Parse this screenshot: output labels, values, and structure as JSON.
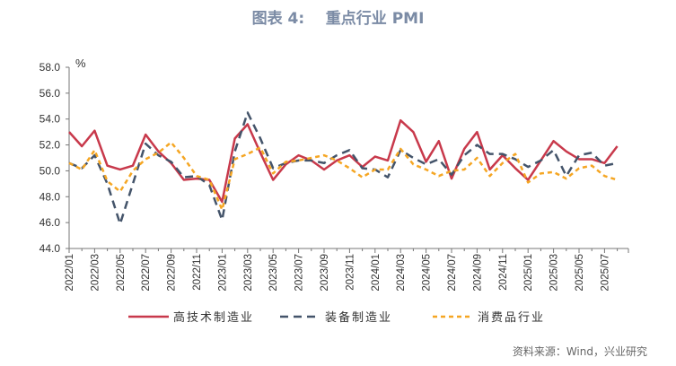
{
  "title": "图表 4:    重点行业 PMI",
  "source": "资料来源：Wind，兴业研究",
  "chart_data": {
    "type": "line",
    "title": "重点行业 PMI",
    "ylabel": "%",
    "ylim": [
      44,
      58
    ],
    "yticks": [
      "44.0",
      "46.0",
      "48.0",
      "50.0",
      "52.0",
      "54.0",
      "56.0",
      "58.0"
    ],
    "grid": false,
    "legend": "bottom",
    "x": [
      "2022/01",
      "2022/02",
      "2022/03",
      "2022/04",
      "2022/05",
      "2022/06",
      "2022/07",
      "2022/08",
      "2022/09",
      "2022/10",
      "2022/11",
      "2022/12",
      "2023/01",
      "2023/02",
      "2023/03",
      "2023/04",
      "2023/05",
      "2023/06",
      "2023/07",
      "2023/08",
      "2023/09",
      "2023/10",
      "2023/11",
      "2023/12",
      "2024/01",
      "2024/02",
      "2024/03",
      "2024/04",
      "2024/05",
      "2024/06",
      "2024/07",
      "2024/08",
      "2024/09",
      "2024/10",
      "2024/11",
      "2024/12",
      "2025/01",
      "2025/02",
      "2025/03",
      "2025/04",
      "2025/05",
      "2025/06",
      "2025/07",
      "2025/08"
    ],
    "xtick_labels": [
      "2022/01",
      "2022/03",
      "2022/05",
      "2022/07",
      "2022/09",
      "2022/11",
      "2023/01",
      "2023/03",
      "2023/05",
      "2023/07",
      "2023/09",
      "2023/11",
      "2024/01",
      "2024/03",
      "2024/05",
      "2024/07",
      "2024/09",
      "2024/11",
      "2025/01",
      "2025/03",
      "2025/05",
      "2025/07"
    ],
    "series": [
      {
        "name": "高技术制造业",
        "color": "#c8394b",
        "style": "solid",
        "values": [
          53.0,
          51.9,
          53.1,
          50.4,
          50.1,
          50.4,
          52.8,
          51.5,
          50.6,
          49.3,
          49.4,
          49.3,
          47.6,
          52.5,
          53.6,
          51.4,
          49.3,
          50.5,
          51.2,
          50.8,
          50.1,
          50.8,
          51.2,
          50.3,
          51.1,
          50.8,
          53.9,
          53.0,
          50.7,
          52.3,
          49.4,
          51.7,
          53.0,
          50.1,
          51.2,
          50.2,
          49.3,
          50.8,
          52.3,
          51.5,
          50.9,
          50.9,
          50.6,
          51.9
        ]
      },
      {
        "name": "装备制造业",
        "color": "#44546a",
        "style": "dash",
        "values": [
          50.6,
          50.2,
          51.2,
          49.0,
          45.9,
          49.0,
          52.1,
          51.2,
          50.7,
          49.5,
          49.6,
          48.9,
          46.2,
          51.5,
          54.5,
          52.5,
          50.2,
          50.6,
          50.8,
          50.8,
          50.6,
          51.2,
          51.6,
          50.2,
          50.1,
          49.5,
          51.6,
          51.0,
          50.5,
          50.9,
          49.7,
          51.2,
          52.0,
          51.3,
          51.3,
          50.9,
          50.3,
          50.8,
          51.6,
          49.6,
          51.2,
          51.4,
          50.4,
          50.6
        ]
      },
      {
        "name": "消费品行业",
        "color": "#f5a623",
        "style": "dot",
        "values": [
          50.6,
          50.1,
          51.6,
          49.2,
          48.4,
          50.0,
          50.9,
          51.4,
          52.2,
          51.0,
          49.6,
          49.3,
          47.0,
          50.9,
          51.3,
          51.8,
          49.8,
          50.7,
          50.8,
          51.0,
          51.2,
          50.8,
          50.2,
          49.5,
          50.1,
          50.1,
          51.7,
          50.5,
          50.1,
          49.6,
          50.0,
          50.1,
          51.0,
          49.6,
          50.6,
          51.3,
          49.1,
          49.8,
          49.9,
          49.4,
          50.2,
          50.4,
          49.6,
          49.3
        ]
      }
    ]
  }
}
